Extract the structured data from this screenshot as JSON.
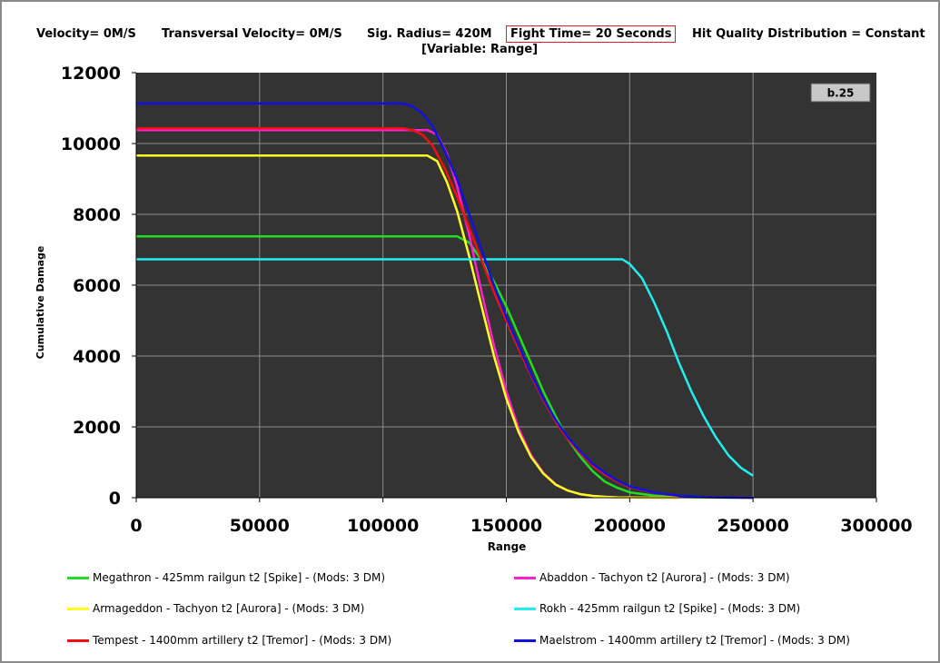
{
  "header": {
    "velocity": "Velocity= 0M/S",
    "transversal": "Transversal Velocity= 0M/S",
    "sig_radius": "Sig. Radius= 420M",
    "fight_time": "Fight Time= 20 Seconds",
    "hit_quality": "Hit Quality Distribution = Constant",
    "variable": "[Variable: Range]"
  },
  "badge": "b.25",
  "chart_data": {
    "type": "line",
    "title": "",
    "xlabel": "Range",
    "ylabel": "Cumulative Damage",
    "xlim": [
      0,
      300000
    ],
    "ylim": [
      0,
      12000
    ],
    "x_ticks": [
      "0",
      "50000",
      "100000",
      "150000",
      "200000",
      "250000",
      "300000"
    ],
    "y_ticks": [
      "0",
      "2000",
      "4000",
      "6000",
      "8000",
      "10000",
      "12000"
    ],
    "grid": true,
    "legend_position": "bottom",
    "series": [
      {
        "name": "Megathron - 425mm railgun t2 [Spike] - (Mods: 3 DM)",
        "color": "#22dd22",
        "x": [
          0,
          130000,
          135000,
          140000,
          145000,
          150000,
          155000,
          160000,
          165000,
          170000,
          175000,
          180000,
          185000,
          190000,
          195000,
          200000,
          210000,
          220000,
          230000,
          240000,
          250000
        ],
        "y": [
          7380,
          7380,
          7200,
          6700,
          6100,
          5400,
          4600,
          3800,
          3000,
          2300,
          1650,
          1150,
          750,
          450,
          280,
          150,
          60,
          20,
          5,
          0,
          0
        ]
      },
      {
        "name": "Abaddon - Tachyon t2 [Aurora] - (Mods: 3 DM)",
        "color": "#ff22cc",
        "x": [
          0,
          118000,
          122000,
          126000,
          130000,
          135000,
          140000,
          145000,
          150000,
          155000,
          160000,
          165000,
          170000,
          175000,
          180000,
          185000,
          190000,
          195000,
          200000,
          210000,
          220000
        ],
        "y": [
          10380,
          10380,
          10250,
          9700,
          8800,
          7400,
          5800,
          4300,
          3000,
          1950,
          1200,
          700,
          380,
          200,
          100,
          50,
          25,
          10,
          5,
          0,
          0
        ]
      },
      {
        "name": "Armageddon - Tachyon t2 [Aurora] - (Mods: 3 DM)",
        "color": "#ffff22",
        "x": [
          0,
          118000,
          122000,
          126000,
          130000,
          135000,
          140000,
          145000,
          150000,
          155000,
          160000,
          165000,
          170000,
          175000,
          180000,
          185000,
          190000,
          195000,
          200000,
          210000,
          220000
        ],
        "y": [
          9660,
          9660,
          9500,
          8900,
          8100,
          6800,
          5400,
          4000,
          2800,
          1850,
          1150,
          680,
          370,
          200,
          100,
          50,
          25,
          10,
          5,
          0,
          0
        ]
      },
      {
        "name": "Rokh - 425mm railgun t2 [Spike] - (Mods: 3 DM)",
        "color": "#22eeee",
        "x": [
          0,
          197000,
          200000,
          205000,
          210000,
          215000,
          220000,
          225000,
          230000,
          235000,
          240000,
          245000,
          250000
        ],
        "y": [
          6730,
          6730,
          6600,
          6200,
          5500,
          4700,
          3800,
          3000,
          2300,
          1700,
          1200,
          850,
          620
        ]
      },
      {
        "name": "Tempest - 1400mm artillery t2 [Tremor] - (Mods: 3 DM)",
        "color": "#ee1111",
        "x": [
          0,
          108000,
          112000,
          116000,
          120000,
          125000,
          130000,
          135000,
          140000,
          145000,
          150000,
          155000,
          160000,
          165000,
          170000,
          175000,
          180000,
          185000,
          190000,
          195000,
          200000,
          210000,
          220000,
          230000,
          240000,
          250000
        ],
        "y": [
          10430,
          10430,
          10380,
          10250,
          9950,
          9300,
          8500,
          7600,
          6700,
          5800,
          5000,
          4200,
          3450,
          2750,
          2150,
          1650,
          1250,
          900,
          650,
          450,
          300,
          130,
          50,
          15,
          5,
          0
        ]
      },
      {
        "name": "Maelstrom - 1400mm artillery t2 [Tremor] - (Mods: 3 DM)",
        "color": "#1111dd",
        "x": [
          0,
          108000,
          112000,
          116000,
          120000,
          125000,
          130000,
          135000,
          140000,
          145000,
          150000,
          155000,
          160000,
          165000,
          170000,
          175000,
          180000,
          185000,
          190000,
          195000,
          200000,
          210000,
          220000,
          230000,
          240000,
          250000
        ],
        "y": [
          11130,
          11130,
          11050,
          10850,
          10500,
          9800,
          9000,
          8000,
          7000,
          6000,
          5100,
          4300,
          3500,
          2800,
          2200,
          1700,
          1300,
          950,
          700,
          480,
          320,
          140,
          60,
          20,
          5,
          0
        ]
      }
    ]
  }
}
